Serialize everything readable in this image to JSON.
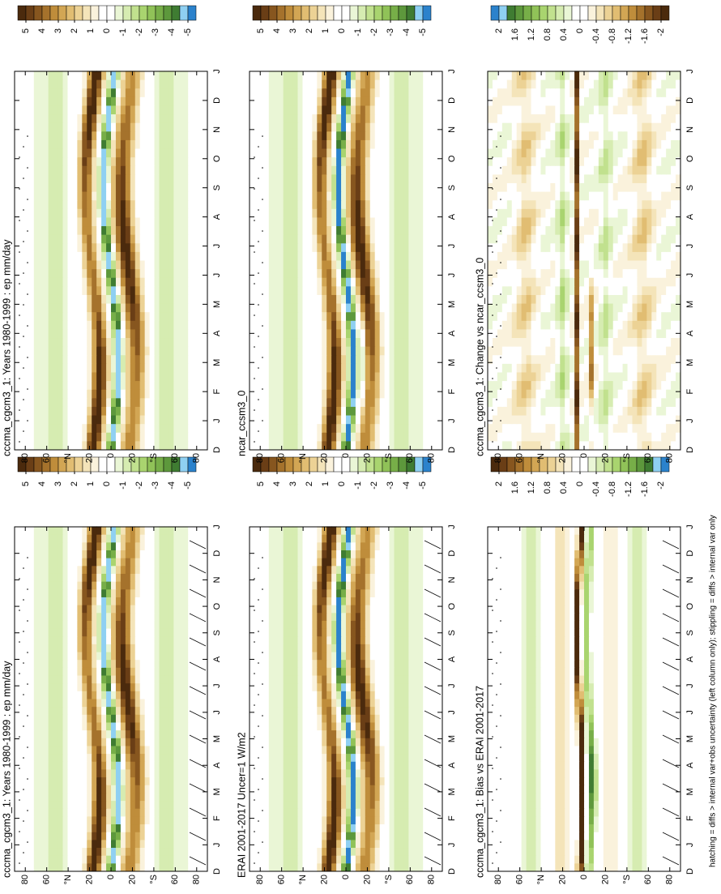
{
  "chart_data": [
    {
      "type": "contour",
      "title": "cccma_cgcm3_1: Years 1980-1999 : ep mm/day",
      "categories": [
        "D",
        "J",
        "F",
        "M",
        "A",
        "M",
        "J",
        "J",
        "A",
        "S",
        "O",
        "N",
        "D",
        "J"
      ],
      "ylim": [
        -90,
        90
      ],
      "yticks": [
        80,
        60,
        {
          "value": 40,
          "label": "°N"
        },
        20,
        0,
        {
          "value": -20,
          "label": "20"
        },
        {
          "value": -40,
          "label": "°S"
        },
        {
          "value": -60,
          "label": "60"
        },
        {
          "value": -80,
          "label": "80"
        }
      ],
      "colorbar": {
        "ticks": [
          5,
          4,
          3,
          2,
          1,
          0,
          -1,
          -2,
          -3,
          -4,
          -5
        ],
        "colors": [
          "#4b2a0d",
          "#6a3e16",
          "#87561f",
          "#a5722c",
          "#bf8d3b",
          "#d2a654",
          "#e1bd72",
          "#ecd295",
          "#f4e4b9",
          "#faf2dc",
          "#ffffff",
          "#ffffff",
          "#eaf6d6",
          "#d6ecb1",
          "#c1e18e",
          "#a9d46f",
          "#90c258",
          "#77ae48",
          "#5d983c",
          "#3f7c32",
          "#8fd0f2",
          "#2b82cc"
        ]
      }
    },
    {
      "type": "contour",
      "title": "ERAI 2001-2017 Uncer=1 W/m2",
      "categories": [
        "D",
        "J",
        "F",
        "M",
        "A",
        "M",
        "J",
        "J",
        "A",
        "S",
        "O",
        "N",
        "D",
        "J"
      ],
      "ylim": [
        -90,
        90
      ],
      "yticks": [
        80,
        60,
        {
          "value": 40,
          "label": "°N"
        },
        20,
        0,
        {
          "value": -20,
          "label": "20"
        },
        {
          "value": -40,
          "label": "°S"
        },
        {
          "value": -60,
          "label": "60"
        },
        {
          "value": -80,
          "label": "80"
        }
      ],
      "colorbar": {
        "ticks": [
          5,
          4,
          3,
          2,
          1,
          0,
          -1,
          -2,
          -3,
          -4,
          -5
        ],
        "colors": [
          "#4b2a0d",
          "#6a3e16",
          "#87561f",
          "#a5722c",
          "#bf8d3b",
          "#d2a654",
          "#e1bd72",
          "#ecd295",
          "#f4e4b9",
          "#faf2dc",
          "#ffffff",
          "#ffffff",
          "#eaf6d6",
          "#d6ecb1",
          "#c1e18e",
          "#a9d46f",
          "#90c258",
          "#77ae48",
          "#5d983c",
          "#3f7c32",
          "#8fd0f2",
          "#2b82cc"
        ]
      }
    },
    {
      "type": "contour",
      "title": "cccma_cgcm3_1: Bias vs ERAI 2001-2017",
      "categories": [
        "D",
        "J",
        "F",
        "M",
        "A",
        "M",
        "J",
        "J",
        "A",
        "S",
        "O",
        "N",
        "D",
        "J"
      ],
      "ylim": [
        -90,
        90
      ],
      "yticks": [
        80,
        60,
        {
          "value": 40,
          "label": "°N"
        },
        20,
        0,
        {
          "value": -20,
          "label": "20"
        },
        {
          "value": -40,
          "label": "°S"
        },
        {
          "value": -60,
          "label": "60"
        },
        {
          "value": -80,
          "label": "80"
        }
      ],
      "colorbar": {
        "ticks": [
          2,
          1.6,
          1.2,
          0.8,
          0.4,
          0,
          -0.4,
          -0.8,
          -1.2,
          -1.6,
          -2
        ],
        "colors": [
          "#4b2a0d",
          "#6a3e16",
          "#87561f",
          "#a5722c",
          "#bf8d3b",
          "#d2a654",
          "#e1bd72",
          "#ecd295",
          "#f4e4b9",
          "#faf2dc",
          "#ffffff",
          "#ffffff",
          "#eaf6d6",
          "#d6ecb1",
          "#c1e18e",
          "#a9d46f",
          "#90c258",
          "#77ae48",
          "#5d983c",
          "#3f7c32",
          "#8fd0f2",
          "#2b82cc"
        ]
      }
    },
    {
      "type": "contour",
      "title": "cccma_cgcm3_1: Years 1980-1999 : ep mm/day",
      "categories": [
        "D",
        "J",
        "F",
        "M",
        "A",
        "M",
        "J",
        "J",
        "A",
        "S",
        "O",
        "N",
        "D",
        "J"
      ],
      "ylim": [
        -90,
        90
      ],
      "yticks": [
        80,
        60,
        {
          "value": 40,
          "label": "°N"
        },
        20,
        0,
        {
          "value": -20,
          "label": "20"
        },
        {
          "value": -40,
          "label": "°S"
        },
        {
          "value": -60,
          "label": "60"
        },
        {
          "value": -80,
          "label": "80"
        }
      ],
      "colorbar": {
        "ticks": [
          5,
          4,
          3,
          2,
          1,
          0,
          -1,
          -2,
          -3,
          -4,
          -5
        ],
        "colors": [
          "#4b2a0d",
          "#6a3e16",
          "#87561f",
          "#a5722c",
          "#bf8d3b",
          "#d2a654",
          "#e1bd72",
          "#ecd295",
          "#f4e4b9",
          "#faf2dc",
          "#ffffff",
          "#ffffff",
          "#eaf6d6",
          "#d6ecb1",
          "#c1e18e",
          "#a9d46f",
          "#90c258",
          "#77ae48",
          "#5d983c",
          "#3f7c32",
          "#8fd0f2",
          "#2b82cc"
        ]
      }
    },
    {
      "type": "contour",
      "title": "ncar_ccsm3_0",
      "categories": [
        "D",
        "J",
        "F",
        "M",
        "A",
        "M",
        "J",
        "J",
        "A",
        "S",
        "O",
        "N",
        "D",
        "J"
      ],
      "ylim": [
        -90,
        90
      ],
      "yticks": [
        80,
        60,
        {
          "value": 40,
          "label": "°N"
        },
        20,
        0,
        {
          "value": -20,
          "label": "20"
        },
        {
          "value": -40,
          "label": "°S"
        },
        {
          "value": -60,
          "label": "60"
        },
        {
          "value": -80,
          "label": "80"
        }
      ],
      "colorbar": {
        "ticks": [
          5,
          4,
          3,
          2,
          1,
          0,
          -1,
          -2,
          -3,
          -4,
          -5
        ],
        "colors": [
          "#4b2a0d",
          "#6a3e16",
          "#87561f",
          "#a5722c",
          "#bf8d3b",
          "#d2a654",
          "#e1bd72",
          "#ecd295",
          "#f4e4b9",
          "#faf2dc",
          "#ffffff",
          "#ffffff",
          "#eaf6d6",
          "#d6ecb1",
          "#c1e18e",
          "#a9d46f",
          "#90c258",
          "#77ae48",
          "#5d983c",
          "#3f7c32",
          "#8fd0f2",
          "#2b82cc"
        ]
      }
    },
    {
      "type": "contour",
      "title": "cccma_cgcm3_1: Change vs ncar_ccsm3_0",
      "categories": [
        "D",
        "J",
        "F",
        "M",
        "A",
        "M",
        "J",
        "J",
        "A",
        "S",
        "O",
        "N",
        "D",
        "J"
      ],
      "ylim": [
        -90,
        90
      ],
      "yticks": [
        80,
        60,
        {
          "value": 40,
          "label": "°N"
        },
        20,
        0,
        {
          "value": -20,
          "label": "20"
        },
        {
          "value": -40,
          "label": "°S"
        },
        {
          "value": -60,
          "label": "60"
        },
        {
          "value": -80,
          "label": "80"
        }
      ],
      "colorbar": {
        "ticks": [
          2,
          1.6,
          1.2,
          0.8,
          0.4,
          0,
          -0.4,
          -0.8,
          -1.2,
          -1.6,
          -2
        ],
        "colors": [
          "#2b82cc",
          "#8fd0f2",
          "#3f7c32",
          "#5d983c",
          "#77ae48",
          "#90c258",
          "#a9d46f",
          "#c1e18e",
          "#d6ecb1",
          "#eaf6d6",
          "#ffffff",
          "#ffffff",
          "#faf2dc",
          "#f4e4b9",
          "#ecd295",
          "#e1bd72",
          "#d2a654",
          "#bf8d3b",
          "#a5722c",
          "#87561f",
          "#6a3e16",
          "#4b2a0d"
        ]
      }
    }
  ],
  "footnote": "hatching = diffs > internal var+obs uncertainty (left column only); stippling = diffs > internal var only"
}
